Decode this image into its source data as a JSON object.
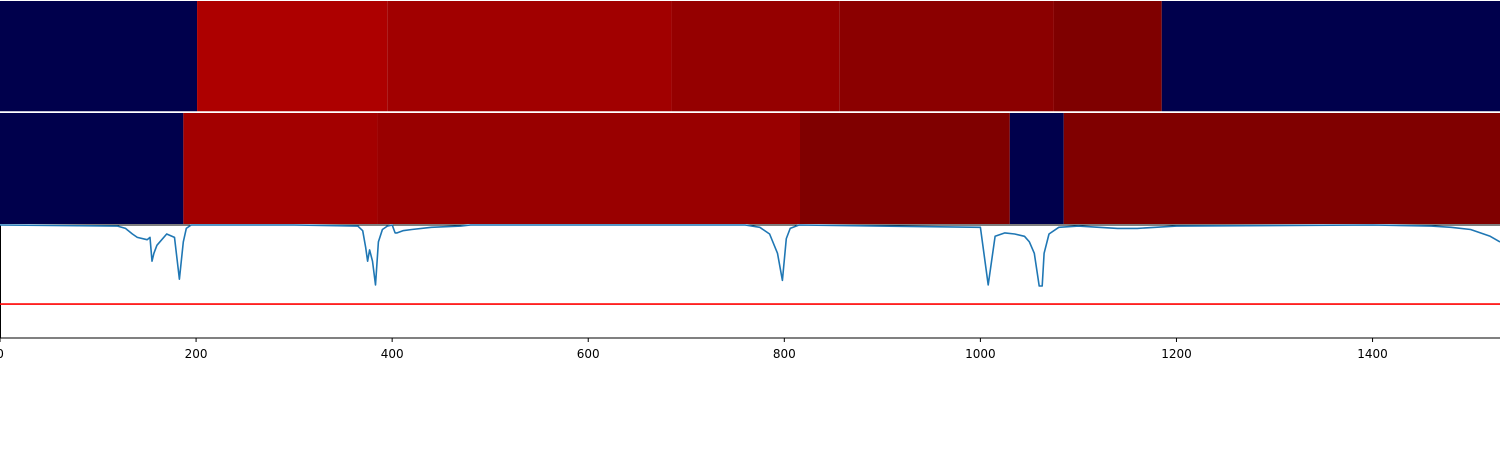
{
  "chart_data": {
    "type": "heatmap",
    "xlim": [
      0,
      1530
    ],
    "colors": {
      "background": "#ffffff",
      "axis": "#000000",
      "trace": "#1f77b4",
      "threshold": "#ff0000",
      "band_off": "#00004c"
    },
    "tracks": [
      {
        "segments": [
          {
            "start": 0,
            "end": 201,
            "color": "#00004c"
          },
          {
            "start": 201,
            "end": 395,
            "color": "#ad0000"
          },
          {
            "start": 395,
            "end": 685,
            "color": "#a10000"
          },
          {
            "start": 685,
            "end": 856,
            "color": "#950000"
          },
          {
            "start": 856,
            "end": 1075,
            "color": "#8b0000"
          },
          {
            "start": 1075,
            "end": 1185,
            "color": "#7f0000"
          },
          {
            "start": 1185,
            "end": 1530,
            "color": "#00004c"
          }
        ]
      },
      {
        "segments": [
          {
            "start": 0,
            "end": 187,
            "color": "#00004c"
          },
          {
            "start": 187,
            "end": 385,
            "color": "#a30000"
          },
          {
            "start": 385,
            "end": 816,
            "color": "#990000"
          },
          {
            "start": 816,
            "end": 1030,
            "color": "#800000"
          },
          {
            "start": 1030,
            "end": 1085,
            "color": "#00004c"
          },
          {
            "start": 1085,
            "end": 1530,
            "color": "#800000"
          }
        ]
      }
    ],
    "trace": {
      "ylim": [
        0,
        1
      ],
      "threshold": 0.3,
      "x": [
        0,
        120,
        128,
        135,
        140,
        150,
        153,
        155,
        157,
        160,
        170,
        178,
        183,
        187,
        190,
        195,
        300,
        365,
        370,
        373,
        375,
        377,
        380,
        383,
        386,
        390,
        395,
        400,
        403,
        405,
        411,
        420,
        440,
        470,
        480,
        760,
        775,
        785,
        793,
        798,
        802,
        806,
        815,
        1000,
        1008,
        1015,
        1025,
        1035,
        1045,
        1050,
        1055,
        1060,
        1063,
        1065,
        1070,
        1080,
        1100,
        1140,
        1160,
        1200,
        1400,
        1460,
        1480,
        1500,
        1520,
        1530
      ],
      "y": [
        1.0,
        0.99,
        0.97,
        0.92,
        0.89,
        0.87,
        0.89,
        0.68,
        0.75,
        0.82,
        0.92,
        0.89,
        0.52,
        0.85,
        0.97,
        1.0,
        1.0,
        0.99,
        0.95,
        0.8,
        0.68,
        0.78,
        0.68,
        0.47,
        0.85,
        0.96,
        0.99,
        1.0,
        0.93,
        0.93,
        0.95,
        0.96,
        0.98,
        0.99,
        1.0,
        1.0,
        0.98,
        0.92,
        0.75,
        0.51,
        0.88,
        0.97,
        1.0,
        0.98,
        0.47,
        0.9,
        0.93,
        0.92,
        0.9,
        0.85,
        0.75,
        0.46,
        0.46,
        0.75,
        0.92,
        0.98,
        0.99,
        0.97,
        0.97,
        0.99,
        1.0,
        0.99,
        0.98,
        0.96,
        0.9,
        0.85
      ]
    },
    "x_ticks": [
      {
        "value": 0,
        "label": "0"
      },
      {
        "value": 200,
        "label": "200"
      },
      {
        "value": 400,
        "label": "400"
      },
      {
        "value": 600,
        "label": "600"
      },
      {
        "value": 800,
        "label": "800"
      },
      {
        "value": 1000,
        "label": "1000"
      },
      {
        "value": 1200,
        "label": "1200"
      },
      {
        "value": 1400,
        "label": "1400"
      }
    ]
  }
}
